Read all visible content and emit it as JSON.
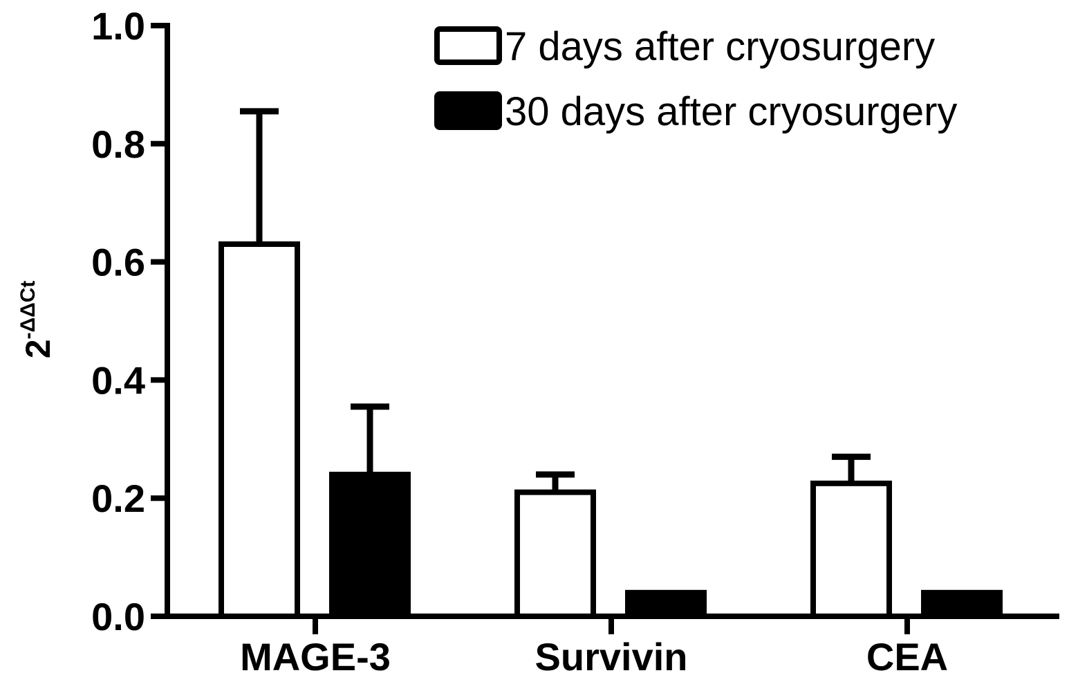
{
  "chart_data": {
    "type": "bar",
    "title": "",
    "xlabel": "",
    "ylabel": {
      "base": "2",
      "exponent": "-ΔΔCt"
    },
    "ylim": [
      0,
      1.0
    ],
    "yticks": [
      "0.0",
      "0.2",
      "0.4",
      "0.6",
      "0.8",
      "1.0"
    ],
    "categories": [
      "MAGE-3",
      "Survivin",
      "CEA"
    ],
    "series": [
      {
        "name": "7 days after cryosurgery",
        "fill": "#ffffff",
        "stroke": "#000000",
        "values": [
          0.63,
          0.21,
          0.225
        ],
        "errors": [
          0.225,
          0.03,
          0.045
        ]
      },
      {
        "name": "30 days after cryosurgery",
        "fill": "#000000",
        "stroke": "#000000",
        "values": [
          0.24,
          0.04,
          0.04
        ],
        "errors": [
          0.115,
          0.0,
          0.0
        ]
      }
    ],
    "legend_position": "top-right",
    "grid": false
  }
}
